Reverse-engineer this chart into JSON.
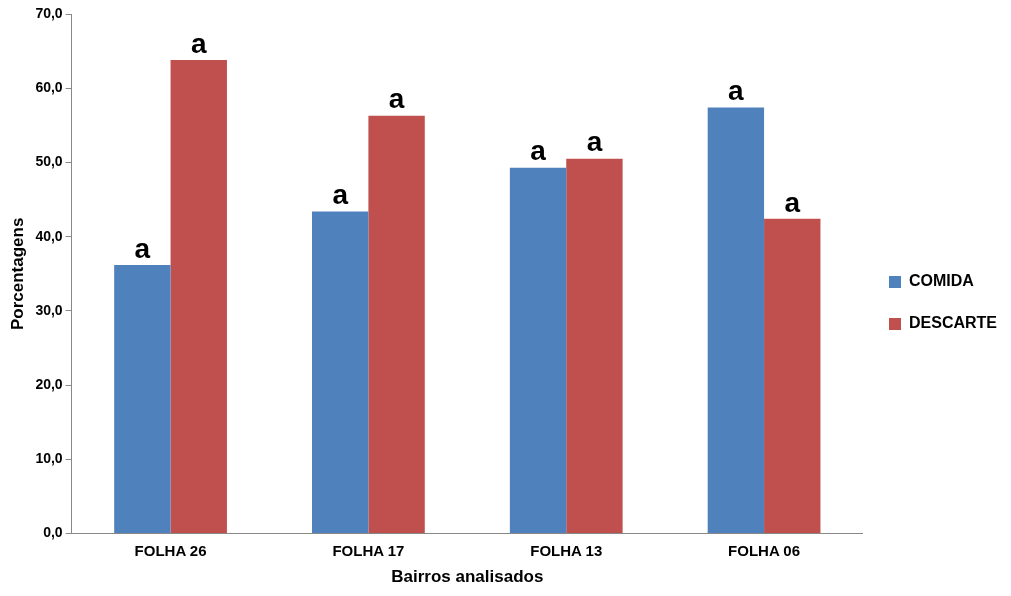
{
  "chart_data": {
    "type": "bar",
    "xlabel": "Bairros analisados",
    "ylabel": "Porcentagens",
    "categories": [
      "FOLHA 26",
      "FOLHA 17",
      "FOLHA 13",
      "FOLHA 06"
    ],
    "series": [
      {
        "name": "COMIDA",
        "color": "#4f81bd",
        "values": [
          36.2,
          43.4,
          49.3,
          57.4
        ],
        "value_labels": [
          "a",
          "a",
          "a",
          "a"
        ]
      },
      {
        "name": "DESCARTE",
        "color": "#c0504d",
        "values": [
          63.8,
          56.3,
          50.5,
          42.4
        ],
        "value_labels": [
          "a",
          "a",
          "a",
          "a"
        ]
      }
    ],
    "ylim": [
      0,
      70
    ],
    "yticks": [
      {
        "value": 0,
        "label": "0,0"
      },
      {
        "value": 10,
        "label": "10,0"
      },
      {
        "value": 20,
        "label": "20,0"
      },
      {
        "value": 30,
        "label": "30,0"
      },
      {
        "value": 40,
        "label": "40,0"
      },
      {
        "value": 50,
        "label": "50,0"
      },
      {
        "value": 60,
        "label": "60,0"
      },
      {
        "value": 70,
        "label": "70,0"
      }
    ],
    "grid": false,
    "legend": "right"
  }
}
